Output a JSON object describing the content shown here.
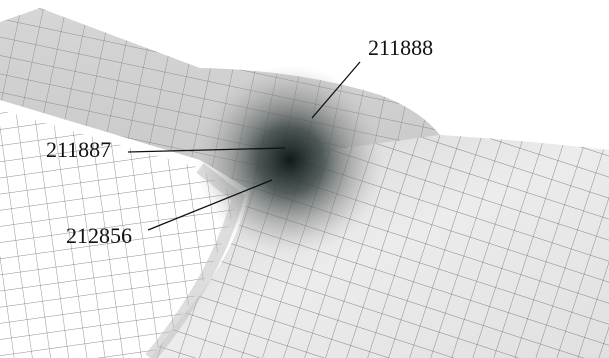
{
  "annotations": [
    {
      "text": "211888"
    },
    {
      "text": "211887"
    },
    {
      "text": "212856"
    }
  ]
}
